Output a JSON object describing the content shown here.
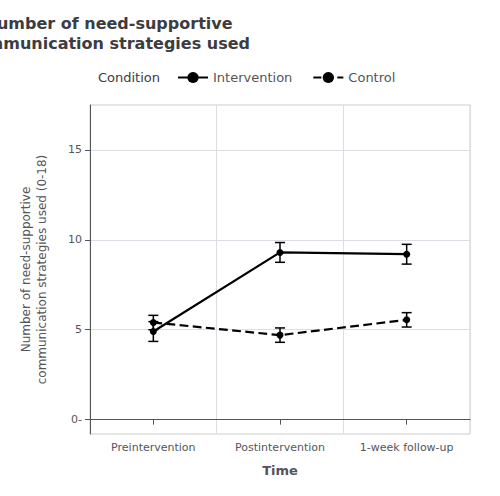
{
  "chart_data": {
    "type": "line",
    "title": "Number of need-supportive\ncommunication strategies used",
    "xlabel": "Time",
    "ylabel": "Number of need-supportive\ncommunication strategies used (0-18)",
    "legend_title": "Condition",
    "categories": [
      "Preintervention",
      "Postintervention",
      "1-week follow-up"
    ],
    "series": [
      {
        "name": "Intervention",
        "color": "#000000",
        "line_style": "solid",
        "marker": "circle",
        "values": [
          4.9,
          9.3,
          9.2
        ],
        "errors": [
          0.55,
          0.55,
          0.55
        ]
      },
      {
        "name": "Control",
        "color": "#000000",
        "line_style": "dashed",
        "marker": "circle",
        "values": [
          5.4,
          4.7,
          5.55
        ],
        "errors": [
          0.4,
          0.4,
          0.4
        ]
      }
    ],
    "ylim": [
      -0.8,
      17.5
    ],
    "yticks": [
      {
        "value": 0,
        "label": "0-"
      },
      5,
      10,
      15
    ],
    "grid": true,
    "legend": "top"
  }
}
